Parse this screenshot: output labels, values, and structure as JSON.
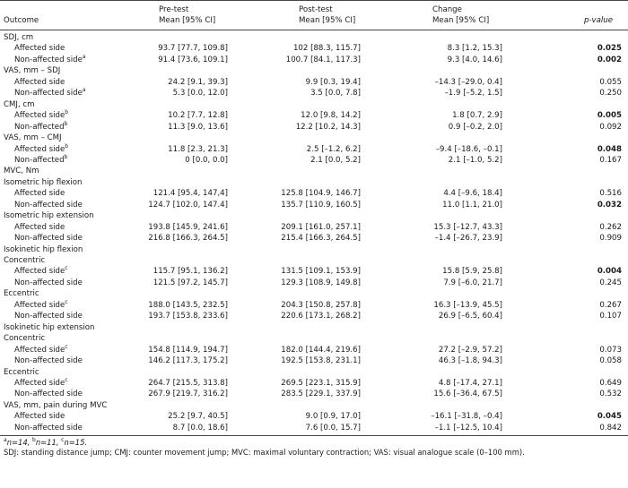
{
  "header": {
    "outcome": "Outcome",
    "pre_line1": "Pre-test",
    "pre_line2": "Mean [95% CI]",
    "post_line1": "Post-test",
    "post_line2": "Mean [95% CI]",
    "change_line1": "Change",
    "change_line2": "Mean [95% CI]",
    "pvalue": "p-value"
  },
  "rows": [
    {
      "kind": "section",
      "label": "SDJ, cm"
    },
    {
      "kind": "data",
      "label": "Affected side",
      "sup": "",
      "pre": "93.7 [77.7, 109.8]",
      "post": "102 [88.3, 115.7]",
      "change": "8.3 [1.2, 15.3]",
      "p": "0.025",
      "bold": true
    },
    {
      "kind": "data",
      "label": "Non-affected side",
      "sup": "a",
      "pre": "91.4 [73.6, 109.1]",
      "post": "100.7 [84.1, 117.3]",
      "change": "9.3 [4.0, 14.6]",
      "p": "0.002",
      "bold": true
    },
    {
      "kind": "section",
      "label": "VAS, mm – SDJ"
    },
    {
      "kind": "data",
      "label": "Affected side",
      "sup": "",
      "pre": "24.2 [9.1, 39.3]",
      "post": "9.9 [0.3, 19.4]",
      "change": "–14.3 [–29.0, 0.4]",
      "p": "0.055",
      "bold": false
    },
    {
      "kind": "data",
      "label": "Non-affected side",
      "sup": "a",
      "pre": "5.3 [0.0, 12.0]",
      "post": "3.5 [0.0, 7.8]",
      "change": "–1.9 [–5.2, 1.5]",
      "p": "0.250",
      "bold": false
    },
    {
      "kind": "section",
      "label": "CMJ, cm"
    },
    {
      "kind": "data",
      "label": "Affected side",
      "sup": "b",
      "pre": "10.2 [7.7, 12.8]",
      "post": "12.0 [9.8, 14.2]",
      "change": "1.8 [0.7, 2.9]",
      "p": "0.005",
      "bold": true
    },
    {
      "kind": "data",
      "label": "Non-affected",
      "sup": "b",
      "pre": "11.3 [9.0, 13.6]",
      "post": "12.2 [10.2, 14.3]",
      "change": "0.9 [–0.2, 2.0]",
      "p": "0.092",
      "bold": false
    },
    {
      "kind": "section",
      "label": "VAS, mm – CMJ"
    },
    {
      "kind": "data",
      "label": "Affected side",
      "sup": "b",
      "pre": "11.8 [2.3, 21.3]",
      "post": "2.5 [–1.2, 6.2]",
      "change": "–9.4 [–18.6, –0.1]",
      "p": "0.048",
      "bold": true
    },
    {
      "kind": "data",
      "label": "Non-affected",
      "sup": "b",
      "pre": "0 [0.0, 0.0]",
      "post": "2.1 [0.0, 5.2]",
      "change": "2.1 [–1.0, 5.2]",
      "p": "0.167",
      "bold": false
    },
    {
      "kind": "section",
      "label": "MVC, Nm"
    },
    {
      "kind": "section",
      "label": "Isometric hip flexion"
    },
    {
      "kind": "data",
      "label": "Affected side",
      "sup": "",
      "pre": "121.4 [95.4, 147,4]",
      "post": "125.8 [104.9, 146.7]",
      "change": "4.4 [–9.6, 18.4]",
      "p": "0.516",
      "bold": false
    },
    {
      "kind": "data",
      "label": "Non-affected side",
      "sup": "",
      "pre": "124.7 [102.0, 147.4]",
      "post": "135.7 [110.9, 160.5]",
      "change": "11.0 [1.1, 21.0]",
      "p": "0.032",
      "bold": true
    },
    {
      "kind": "section",
      "label": "Isometric hip extension"
    },
    {
      "kind": "data",
      "label": "Affected side",
      "sup": "",
      "pre": "193.8 [145.9, 241.6]",
      "post": "209.1 [161.0, 257.1]",
      "change": "15.3 [–12.7, 43.3]",
      "p": "0.262",
      "bold": false
    },
    {
      "kind": "data",
      "label": "Non-affected side",
      "sup": "",
      "pre": "216.8 [166.3, 264.5]",
      "post": "215.4 [166.3, 264.5]",
      "change": "–1.4 [–26.7, 23.9]",
      "p": "0.909",
      "bold": false
    },
    {
      "kind": "section",
      "label": "Isokinetic hip flexion"
    },
    {
      "kind": "section",
      "label": "Concentric"
    },
    {
      "kind": "data",
      "label": "Affected side",
      "sup": "c",
      "pre": "115.7 [95.1, 136.2]",
      "post": "131.5 [109.1, 153.9]",
      "change": "15.8 [5.9, 25.8]",
      "p": "0.004",
      "bold": true
    },
    {
      "kind": "data",
      "label": "Non-affected side",
      "sup": "",
      "pre": "121.5 [97.2, 145.7]",
      "post": "129.3 [108.9, 149.8]",
      "change": "7.9 [–6.0, 21.7]",
      "p": "0.245",
      "bold": false
    },
    {
      "kind": "section",
      "label": "Eccentric"
    },
    {
      "kind": "data",
      "label": "Affected side",
      "sup": "c",
      "pre": "188.0 [143.5, 232.5]",
      "post": "204.3 [150.8, 257.8]",
      "change": "16.3 [–13.9, 45.5]",
      "p": "0.267",
      "bold": false
    },
    {
      "kind": "data",
      "label": "Non-affected side",
      "sup": "",
      "pre": "193.7 [153.8, 233.6]",
      "post": "220.6 [173.1, 268.2]",
      "change": "26.9 [–6.5, 60.4]",
      "p": "0.107",
      "bold": false
    },
    {
      "kind": "section",
      "label": "Isokinetic hip extension"
    },
    {
      "kind": "section",
      "label": "Concentric"
    },
    {
      "kind": "data",
      "label": "Affected side",
      "sup": "c",
      "pre": "154.8 [114.9, 194.7]",
      "post": "182.0 [144.4, 219.6]",
      "change": "27.2 [–2.9, 57.2]",
      "p": "0.073",
      "bold": false
    },
    {
      "kind": "data",
      "label": "Non-affected side",
      "sup": "",
      "pre": "146.2 [117.3, 175.2]",
      "post": "192.5 [153.8, 231.1]",
      "change": "46.3 [–1.8, 94.3]",
      "p": "0.058",
      "bold": false
    },
    {
      "kind": "section",
      "label": "Eccentric"
    },
    {
      "kind": "data",
      "label": "Affected side",
      "sup": "c",
      "pre": "264.7 [215.5, 313.8]",
      "post": "269.5 [223.1, 315.9]",
      "change": "4.8 [–17.4, 27.1]",
      "p": "0.649",
      "bold": false
    },
    {
      "kind": "data",
      "label": "Non-affected side",
      "sup": "",
      "pre": "267.9 [219.7, 316.2]",
      "post": "283.5 [229.1, 337.9]",
      "change": "15.6 [–36.4, 67.5]",
      "p": "0.532",
      "bold": false
    },
    {
      "kind": "section",
      "label": "VAS, mm, pain during MVC"
    },
    {
      "kind": "data",
      "label": "Affected side",
      "sup": "",
      "pre": "25.2 [9.7, 40.5]",
      "post": "9.0 [0.9, 17.0]",
      "change": "–16.1 [–31.8, –0.4]",
      "p": "0.045",
      "bold": true
    },
    {
      "kind": "data",
      "label": "Non-affected side",
      "sup": "",
      "pre": "8.7 [0.0, 18.6]",
      "post": "7.6 [0.0, 15.7]",
      "change": "–1.1 [–12.5, 10.4]",
      "p": "0.842",
      "bold": false
    }
  ],
  "footnotes": {
    "line1_a_sup": "a",
    "line1_a_text": "n=14, ",
    "line1_b_sup": "b",
    "line1_b_text": "n=11, ",
    "line1_c_sup": "c",
    "line1_c_text": "n=15.",
    "line2": "SDJ: standing distance jump; CMJ: counter movement jump; MVC: maximal voluntary contraction; VAS: visual analogue scale (0–100 mm)."
  }
}
